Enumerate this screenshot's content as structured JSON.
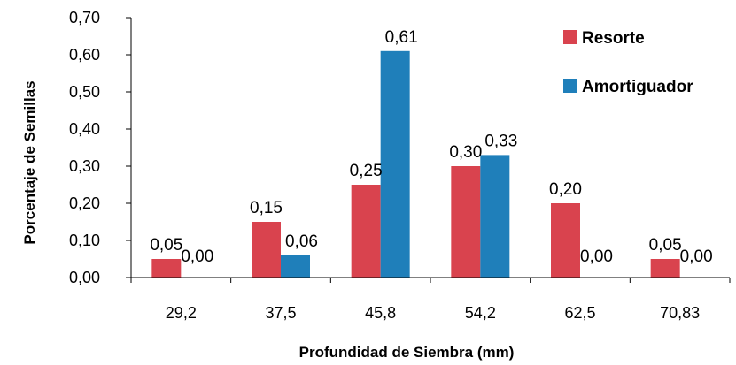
{
  "chart_data": {
    "type": "bar",
    "categories": [
      "29,2",
      "37,5",
      "45,8",
      "54,2",
      "62,5",
      "70,83"
    ],
    "series": [
      {
        "name": "Resorte",
        "values": [
          0.05,
          0.15,
          0.25,
          0.3,
          0.2,
          0.05
        ],
        "labels": [
          "0,05",
          "0,15",
          "0,25",
          "0,30",
          "0,20",
          "0,05"
        ],
        "color": "#d9434e"
      },
      {
        "name": "Amortiguador",
        "values": [
          0.0,
          0.06,
          0.61,
          0.33,
          0.0,
          0.0
        ],
        "labels": [
          "0,00",
          "0,06",
          "0,61",
          "0,33",
          "0,00",
          "0,00"
        ],
        "color": "#1f7fba"
      }
    ],
    "yticks": [
      "0,00",
      "0,10",
      "0,20",
      "0,30",
      "0,40",
      "0,50",
      "0,60",
      "0,70"
    ],
    "ylim": [
      0,
      0.7
    ],
    "xlabel": "Profundidad de Siembra (mm)",
    "ylabel": "Porcentaje de Semillas",
    "legend_position": "top-right",
    "grid": false
  }
}
